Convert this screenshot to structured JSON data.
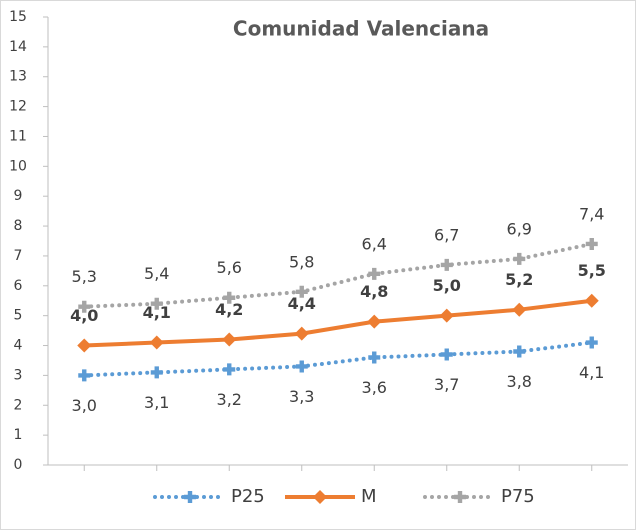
{
  "chart_data": {
    "type": "line",
    "title": "Comunidad Valenciana",
    "categories": [
      null,
      null,
      null,
      null,
      null,
      null,
      null,
      null
    ],
    "ylim": [
      0,
      15
    ],
    "yticks": [
      0,
      1,
      2,
      3,
      4,
      5,
      6,
      7,
      8,
      9,
      10,
      11,
      12,
      13,
      14,
      15
    ],
    "grid": false,
    "legend": "bottom",
    "series": [
      {
        "name": "P25",
        "color": "#5b9bd5",
        "style": "dotted",
        "marker": "plus",
        "values": [
          3.0,
          3.1,
          3.2,
          3.3,
          3.6,
          3.7,
          3.8,
          4.1
        ],
        "value_labels": [
          "3,0",
          "3,1",
          "3,2",
          "3,3",
          "3,6",
          "3,7",
          "3,8",
          "4,1"
        ]
      },
      {
        "name": "M",
        "color": "#ed7d31",
        "style": "solid",
        "marker": "diamond",
        "values": [
          4.0,
          4.1,
          4.2,
          4.4,
          4.8,
          5.0,
          5.2,
          5.5
        ],
        "value_labels": [
          "4,0",
          "4,1",
          "4,2",
          "4,4",
          "4,8",
          "5,0",
          "5,2",
          "5,5"
        ]
      },
      {
        "name": "P75",
        "color": "#a5a5a5",
        "style": "dotted",
        "marker": "plus",
        "values": [
          5.3,
          5.4,
          5.6,
          5.8,
          6.4,
          6.7,
          6.9,
          7.4
        ],
        "value_labels": [
          "5,3",
          "5,4",
          "5,6",
          "5,8",
          "6,4",
          "6,7",
          "6,9",
          "7,4"
        ]
      }
    ]
  }
}
